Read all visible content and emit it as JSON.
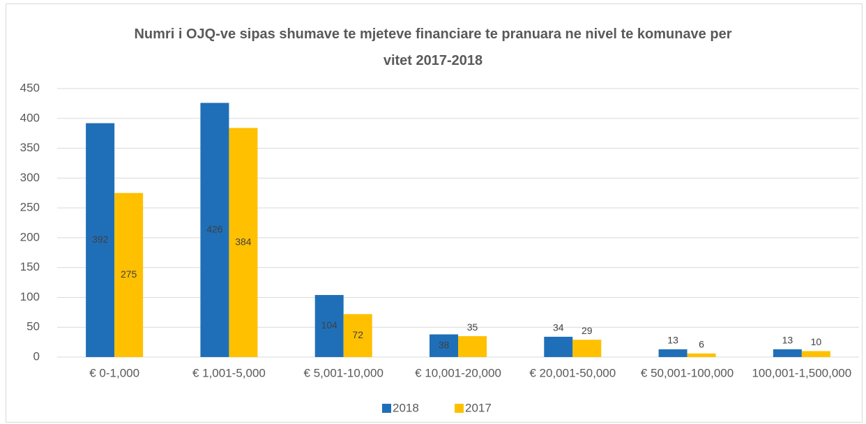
{
  "chart_data": {
    "type": "bar",
    "title": "Numri i OJQ-ve sipas shumave te mjeteve financiare te pranuara ne nivel te komunave per vitet 2017-2018",
    "categories": [
      "€ 0-1,000",
      "€ 1,001-5,000",
      "€ 5,001-10,000",
      "€ 10,001-20,000",
      "€ 20,001-50,000",
      "€ 50,001-100,000",
      "100,001-1,500,000"
    ],
    "series": [
      {
        "name": "2018",
        "color": "#1f6fb8",
        "values": [
          392,
          426,
          104,
          38,
          34,
          13,
          13
        ]
      },
      {
        "name": "2017",
        "color": "#ffc000",
        "values": [
          275,
          384,
          72,
          35,
          29,
          6,
          10
        ]
      }
    ],
    "ylim": [
      0,
      450
    ],
    "yticks": [
      0,
      50,
      100,
      150,
      200,
      250,
      300,
      350,
      400,
      450
    ],
    "grid": true,
    "legend": "bottom"
  }
}
